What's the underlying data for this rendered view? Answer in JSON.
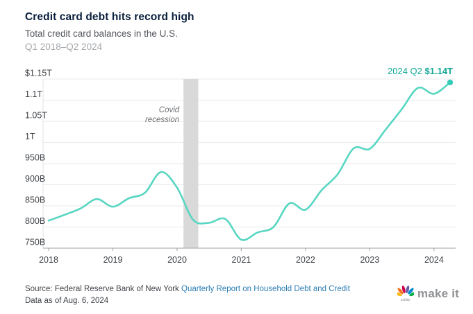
{
  "header": {
    "title": "Credit card debt hits record high",
    "subtitle": "Total credit card balances in the U.S.",
    "date_range": "Q1 2018–Q2 2024"
  },
  "annotation": {
    "label": "2024 Q2",
    "value": "$1.14T"
  },
  "chart_data": {
    "type": "line",
    "title": "Total credit card balances in the U.S.",
    "series_name": "Credit card balances",
    "x": [
      2018.0,
      2018.25,
      2018.5,
      2018.75,
      2019.0,
      2019.25,
      2019.5,
      2019.75,
      2020.0,
      2020.25,
      2020.5,
      2020.75,
      2021.0,
      2021.25,
      2021.5,
      2021.75,
      2022.0,
      2022.25,
      2022.5,
      2022.75,
      2023.0,
      2023.25,
      2023.5,
      2023.75,
      2024.0,
      2024.25
    ],
    "quarters": [
      "2018 Q1",
      "2018 Q2",
      "2018 Q3",
      "2018 Q4",
      "2019 Q1",
      "2019 Q2",
      "2019 Q3",
      "2019 Q4",
      "2020 Q1",
      "2020 Q2",
      "2020 Q3",
      "2020 Q4",
      "2021 Q1",
      "2021 Q2",
      "2021 Q3",
      "2021 Q4",
      "2022 Q1",
      "2022 Q2",
      "2022 Q3",
      "2022 Q4",
      "2023 Q1",
      "2023 Q2",
      "2023 Q3",
      "2023 Q4",
      "2024 Q1",
      "2024 Q2"
    ],
    "values_billions": [
      815,
      829,
      844,
      866,
      848,
      868,
      881,
      930,
      893,
      817,
      810,
      819,
      770,
      787,
      800,
      856,
      841,
      887,
      925,
      986,
      985,
      1031,
      1079,
      1129,
      1115,
      1142
    ],
    "ylim_billions": [
      750,
      1150
    ],
    "xlim": [
      2018,
      2024.25
    ],
    "y_ticks": [
      {
        "value": 1150,
        "label": "$1.15T"
      },
      {
        "value": 1100,
        "label": "1.1T"
      },
      {
        "value": 1050,
        "label": "1.05T"
      },
      {
        "value": 1000,
        "label": "1T"
      },
      {
        "value": 950,
        "label": "950B"
      },
      {
        "value": 900,
        "label": "900B"
      },
      {
        "value": 850,
        "label": "850B"
      },
      {
        "value": 800,
        "label": "800B"
      },
      {
        "value": 750,
        "label": "750B"
      }
    ],
    "x_ticks": [
      {
        "value": 2018,
        "label": "2018"
      },
      {
        "value": 2019,
        "label": "2019"
      },
      {
        "value": 2020,
        "label": "2020"
      },
      {
        "value": 2021,
        "label": "2021"
      },
      {
        "value": 2022,
        "label": "2022"
      },
      {
        "value": 2023,
        "label": "2023"
      },
      {
        "value": 2024,
        "label": "2024"
      }
    ],
    "covid_band": {
      "start": 2020.1,
      "end": 2020.33,
      "label": "Covid recession"
    },
    "grid": true,
    "line_color": "#57d6c2",
    "dot_color": "#35cbb6",
    "annotation_color": "#13a795",
    "latest_point": {
      "quarter": "2024 Q2",
      "value_label": "$1.14T",
      "value_billions": 1142
    }
  },
  "footer": {
    "source_prefix": "Source: Federal Reserve Bank of New York ",
    "source_link": "Quarterly Report on Household Debt and Credit",
    "data_as_of": "Data as of Aug. 6, 2024",
    "logo_cnbc": "cnbc",
    "logo_text": "make it"
  }
}
